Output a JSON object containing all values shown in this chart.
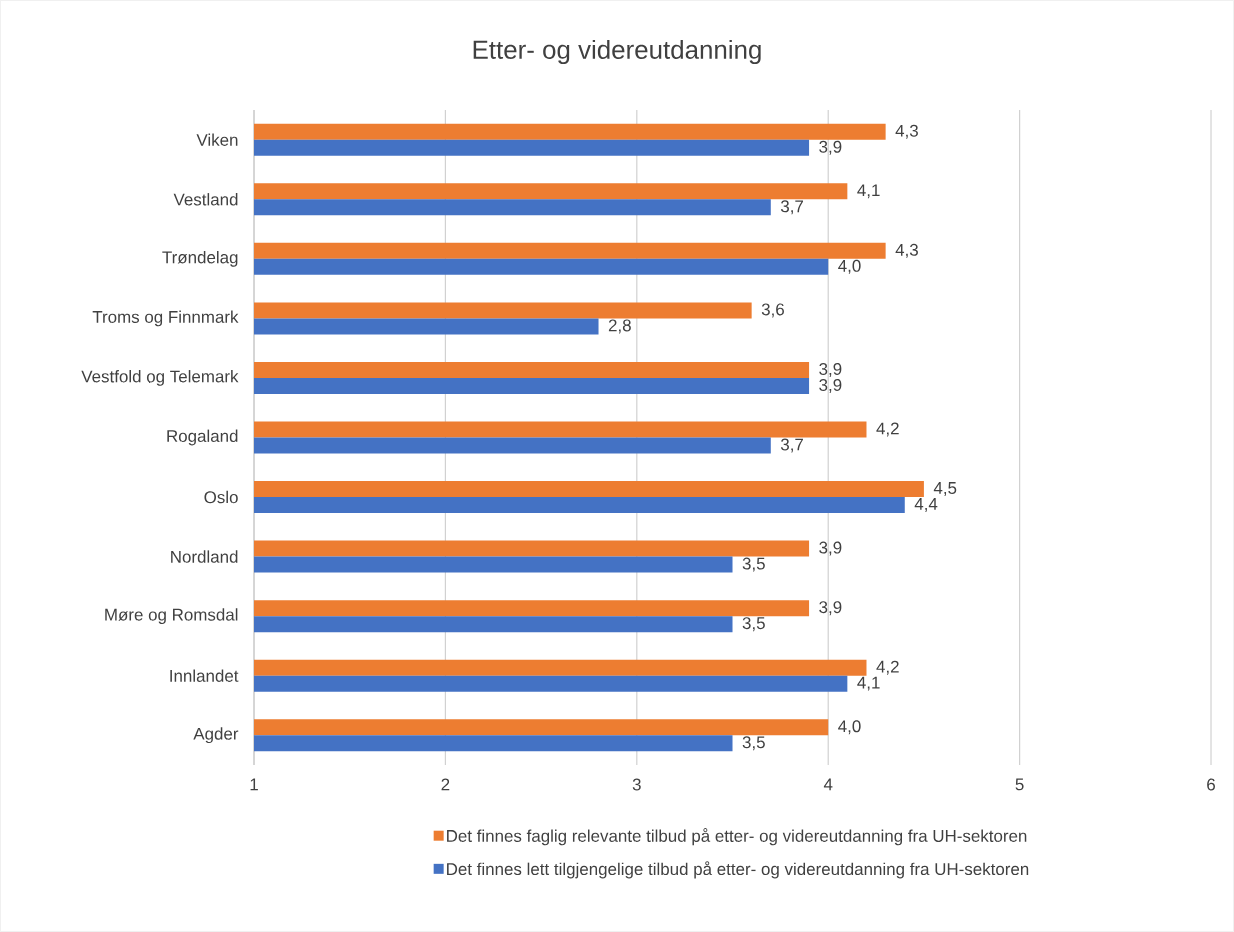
{
  "chart_data": {
    "type": "bar",
    "orientation": "horizontal",
    "title": "Etter- og videreutdanning",
    "categories": [
      "Viken",
      "Vestland",
      "Trøndelag",
      "Troms og Finnmark",
      "Vestfold og Telemark",
      "Rogaland",
      "Oslo",
      "Nordland",
      "Møre og Romsdal",
      "Innlandet",
      "Agder"
    ],
    "series": [
      {
        "name": "Det finnes faglig relevante tilbud på etter- og videreutdanning fra UH-sektoren",
        "color": "#ed7d31",
        "values": [
          4.3,
          4.1,
          4.3,
          3.6,
          3.9,
          4.2,
          4.5,
          3.9,
          3.9,
          4.2,
          4.0
        ],
        "value_labels": [
          "4,3",
          "4,1",
          "4,3",
          "3,6",
          "3,9",
          "4,2",
          "4,5",
          "3,9",
          "3,9",
          "4,2",
          "4,0"
        ]
      },
      {
        "name": "Det finnes lett tilgjengelige tilbud på etter- og videreutdanning fra UH-sektoren",
        "color": "#4472c4",
        "values": [
          3.9,
          3.7,
          4.0,
          2.8,
          3.9,
          3.7,
          4.4,
          3.5,
          3.5,
          4.1,
          3.5
        ],
        "value_labels": [
          "3,9",
          "3,7",
          "4,0",
          "2,8",
          "3,9",
          "3,7",
          "4,4",
          "3,5",
          "3,5",
          "4,1",
          "3,5"
        ]
      }
    ],
    "xlim": [
      1,
      6
    ],
    "xticks": [
      1,
      2,
      3,
      4,
      5,
      6
    ],
    "grid": "x",
    "legend": "bottom"
  }
}
